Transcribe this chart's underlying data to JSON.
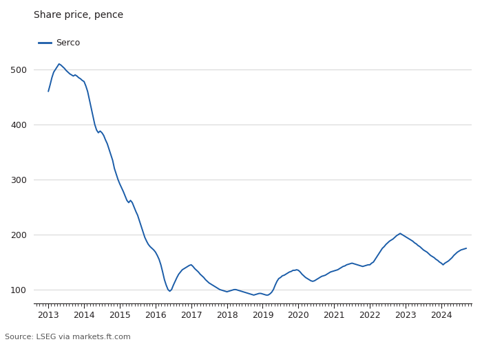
{
  "title": "Share price, pence",
  "legend_label": "Serco",
  "source": "Source: LSEG via markets.ft.com",
  "line_color": "#1a5ca8",
  "background_color": "#ffffff",
  "text_color": "#231f20",
  "grid_color": "#d9d9d9",
  "axis_color": "#231f20",
  "yticks": [
    100,
    200,
    300,
    400,
    500
  ],
  "xtick_years": [
    "2013",
    "2014",
    "2015",
    "2016",
    "2017",
    "2018",
    "2019",
    "2020",
    "2021",
    "2022",
    "2023",
    "2024"
  ],
  "ylim": [
    75,
    545
  ],
  "xlim": [
    2012.6,
    2024.85
  ],
  "series": {
    "dates": [
      2013.0,
      2013.05,
      2013.1,
      2013.15,
      2013.2,
      2013.25,
      2013.3,
      2013.35,
      2013.4,
      2013.45,
      2013.5,
      2013.55,
      2013.6,
      2013.65,
      2013.7,
      2013.75,
      2013.8,
      2013.85,
      2013.9,
      2013.95,
      2014.0,
      2014.05,
      2014.1,
      2014.15,
      2014.2,
      2014.25,
      2014.3,
      2014.35,
      2014.4,
      2014.45,
      2014.5,
      2014.55,
      2014.6,
      2014.65,
      2014.7,
      2014.75,
      2014.8,
      2014.85,
      2014.9,
      2014.95,
      2015.0,
      2015.05,
      2015.1,
      2015.15,
      2015.2,
      2015.25,
      2015.3,
      2015.35,
      2015.4,
      2015.45,
      2015.5,
      2015.55,
      2015.6,
      2015.65,
      2015.7,
      2015.75,
      2015.8,
      2015.85,
      2015.9,
      2015.95,
      2016.0,
      2016.05,
      2016.1,
      2016.15,
      2016.2,
      2016.25,
      2016.3,
      2016.35,
      2016.4,
      2016.45,
      2016.5,
      2016.55,
      2016.6,
      2016.65,
      2016.7,
      2016.75,
      2016.8,
      2016.85,
      2016.9,
      2016.95,
      2017.0,
      2017.05,
      2017.1,
      2017.15,
      2017.2,
      2017.25,
      2017.3,
      2017.35,
      2017.4,
      2017.45,
      2017.5,
      2017.55,
      2017.6,
      2017.65,
      2017.7,
      2017.75,
      2017.8,
      2017.85,
      2017.9,
      2017.95,
      2018.0,
      2018.05,
      2018.1,
      2018.15,
      2018.2,
      2018.25,
      2018.3,
      2018.35,
      2018.4,
      2018.45,
      2018.5,
      2018.55,
      2018.6,
      2018.65,
      2018.7,
      2018.75,
      2018.8,
      2018.85,
      2018.9,
      2018.95,
      2019.0,
      2019.05,
      2019.1,
      2019.15,
      2019.2,
      2019.25,
      2019.3,
      2019.35,
      2019.4,
      2019.45,
      2019.5,
      2019.55,
      2019.6,
      2019.65,
      2019.7,
      2019.75,
      2019.8,
      2019.85,
      2019.9,
      2019.95,
      2020.0,
      2020.05,
      2020.1,
      2020.15,
      2020.2,
      2020.25,
      2020.3,
      2020.35,
      2020.4,
      2020.45,
      2020.5,
      2020.55,
      2020.6,
      2020.65,
      2020.7,
      2020.75,
      2020.8,
      2020.85,
      2020.9,
      2020.95,
      2021.0,
      2021.05,
      2021.1,
      2021.15,
      2021.2,
      2021.25,
      2021.3,
      2021.35,
      2021.4,
      2021.45,
      2021.5,
      2021.55,
      2021.6,
      2021.65,
      2021.7,
      2021.75,
      2021.8,
      2021.85,
      2021.9,
      2021.95,
      2022.0,
      2022.05,
      2022.1,
      2022.15,
      2022.2,
      2022.25,
      2022.3,
      2022.35,
      2022.4,
      2022.45,
      2022.5,
      2022.55,
      2022.6,
      2022.65,
      2022.7,
      2022.75,
      2022.8,
      2022.85,
      2022.9,
      2022.95,
      2023.0,
      2023.05,
      2023.1,
      2023.15,
      2023.2,
      2023.25,
      2023.3,
      2023.35,
      2023.4,
      2023.45,
      2023.5,
      2023.55,
      2023.6,
      2023.65,
      2023.7,
      2023.75,
      2023.8,
      2023.85,
      2023.9,
      2023.95,
      2024.0,
      2024.05,
      2024.1,
      2024.15,
      2024.2,
      2024.25,
      2024.3,
      2024.35,
      2024.4,
      2024.45,
      2024.5,
      2024.55,
      2024.6,
      2024.65,
      2024.7
    ],
    "prices": [
      460,
      472,
      485,
      495,
      500,
      505,
      510,
      508,
      505,
      502,
      498,
      495,
      492,
      490,
      488,
      490,
      488,
      485,
      483,
      480,
      478,
      470,
      460,
      445,
      430,
      415,
      400,
      390,
      385,
      388,
      385,
      380,
      372,
      365,
      355,
      345,
      335,
      320,
      310,
      300,
      292,
      285,
      278,
      270,
      262,
      258,
      262,
      258,
      250,
      242,
      235,
      225,
      215,
      205,
      195,
      188,
      182,
      178,
      175,
      172,
      168,
      162,
      155,
      145,
      132,
      118,
      108,
      100,
      97,
      100,
      108,
      115,
      122,
      128,
      132,
      136,
      138,
      140,
      142,
      144,
      145,
      142,
      138,
      135,
      132,
      128,
      125,
      122,
      118,
      115,
      112,
      110,
      108,
      106,
      104,
      102,
      100,
      99,
      98,
      97,
      96,
      97,
      98,
      99,
      100,
      100,
      99,
      98,
      97,
      96,
      95,
      94,
      93,
      92,
      91,
      90,
      91,
      92,
      93,
      93,
      92,
      91,
      90,
      90,
      92,
      95,
      100,
      108,
      115,
      120,
      122,
      125,
      126,
      128,
      130,
      132,
      133,
      135,
      135,
      136,
      135,
      132,
      128,
      125,
      122,
      120,
      118,
      116,
      115,
      116,
      118,
      120,
      122,
      124,
      125,
      126,
      128,
      130,
      132,
      133,
      134,
      135,
      136,
      138,
      140,
      142,
      143,
      145,
      146,
      147,
      148,
      147,
      146,
      145,
      144,
      143,
      142,
      143,
      144,
      145,
      145,
      148,
      150,
      155,
      160,
      165,
      170,
      175,
      178,
      182,
      185,
      188,
      190,
      192,
      195,
      198,
      200,
      202,
      200,
      198,
      196,
      194,
      192,
      190,
      188,
      185,
      183,
      180,
      178,
      175,
      172,
      170,
      168,
      165,
      162,
      160,
      158,
      155,
      153,
      150,
      148,
      145,
      148,
      150,
      152,
      155,
      158,
      162,
      165,
      168,
      170,
      172,
      173,
      174,
      175
    ]
  }
}
